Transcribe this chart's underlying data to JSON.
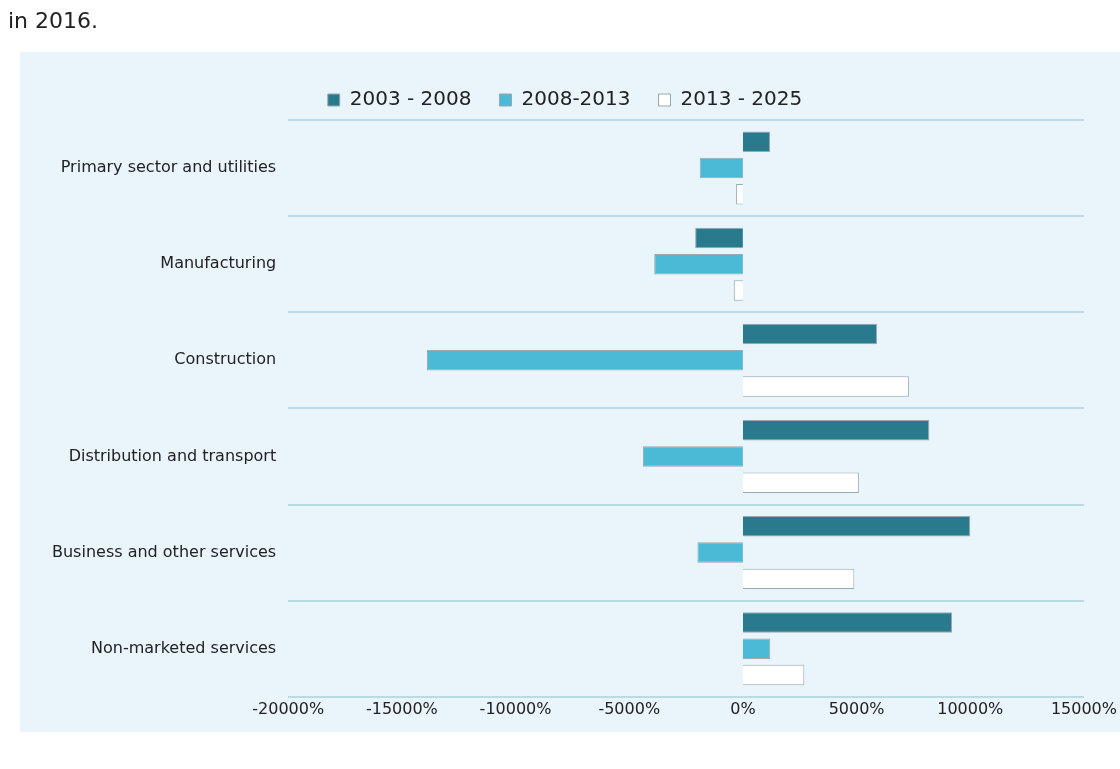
{
  "chart_data": {
    "type": "bar",
    "orientation": "horizontal",
    "annotations": [
      "in 2016."
    ],
    "categories": [
      "Primary sector and utilities",
      "Manufacturing",
      "Construction",
      "Distribution and transport",
      "Business and other services",
      "Non-marketed services"
    ],
    "series": [
      {
        "name": "2003 - 2008",
        "color": "#2a7a8e",
        "values": [
          1200,
          -2100,
          5900,
          8200,
          10000,
          9200
        ]
      },
      {
        "name": "2008-2013",
        "color": "#4bbad6",
        "values": [
          -1900,
          -3900,
          -13900,
          -4400,
          -2000,
          1200
        ]
      },
      {
        "name": "2013 - 2025",
        "color": "#ffffff",
        "values": [
          -300,
          -400,
          7300,
          5100,
          4900,
          2700
        ]
      }
    ],
    "xlim": [
      -20000,
      15000
    ],
    "xticks": [
      {
        "value": -20000,
        "label": "-20000%"
      },
      {
        "value": -15000,
        "label": "-15000%"
      },
      {
        "value": -10000,
        "label": "-10000%"
      },
      {
        "value": -5000,
        "label": "-5000%"
      },
      {
        "value": 0,
        "label": "0%"
      },
      {
        "value": 5000,
        "label": "5000%"
      },
      {
        "value": 10000,
        "label": "10000%"
      },
      {
        "value": 15000,
        "label": "15000%"
      }
    ],
    "grid": "y",
    "legend": "top"
  }
}
